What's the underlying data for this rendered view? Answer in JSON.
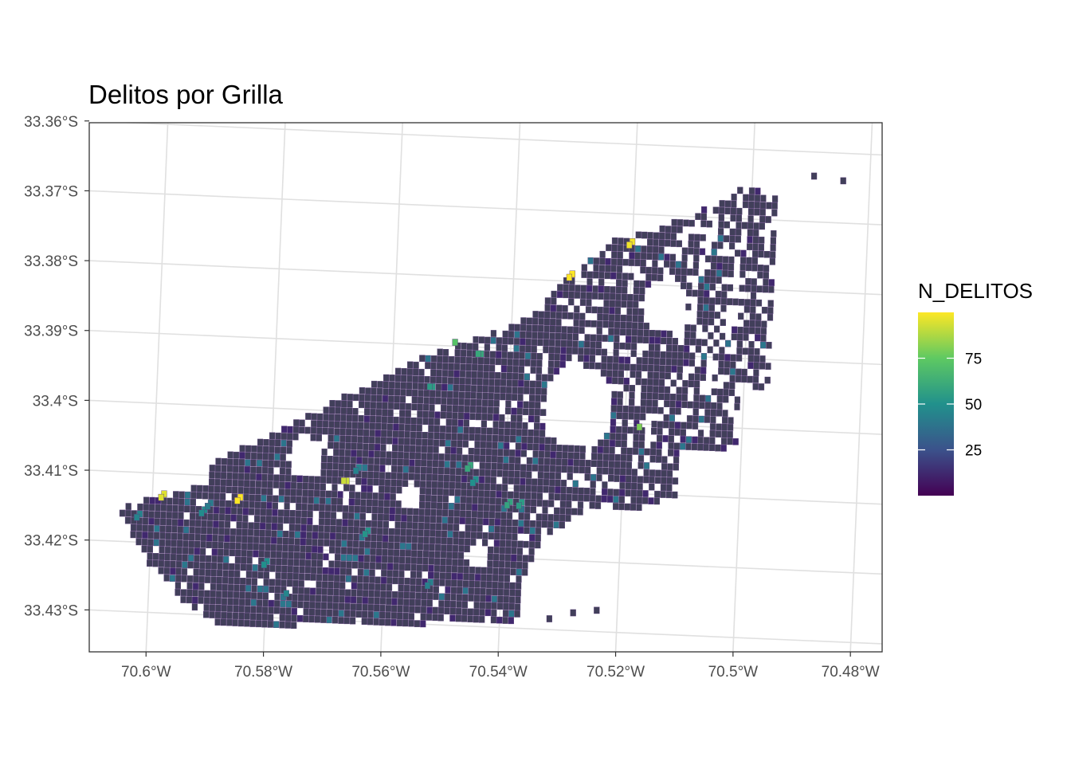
{
  "title": "Delitos por Grilla",
  "x_axis": {
    "ticks": [
      "70.6°W",
      "70.58°W",
      "70.56°W",
      "70.54°W",
      "70.52°W",
      "70.5°W",
      "70.48°W"
    ],
    "values": [
      -70.6,
      -70.58,
      -70.56,
      -70.54,
      -70.52,
      -70.5,
      -70.48
    ]
  },
  "y_axis": {
    "ticks": [
      "33.36°S",
      "33.37°S",
      "33.38°S",
      "33.39°S",
      "33.4°S",
      "33.41°S",
      "33.42°S",
      "33.43°S"
    ],
    "values": [
      -33.36,
      -33.37,
      -33.38,
      -33.39,
      -33.4,
      -33.41,
      -33.42,
      -33.43
    ]
  },
  "legend": {
    "title": "N_DELITOS",
    "labels": [
      "75",
      "50",
      "25"
    ],
    "values": [
      75,
      50,
      25
    ],
    "range": [
      0,
      100
    ],
    "colors": [
      "#440154",
      "#3b528b",
      "#21918c",
      "#5ec962",
      "#fde725"
    ]
  },
  "colors": {
    "base_cell": "#413f5a",
    "cell_border": "#5a3f7a",
    "grid": "#e0e0e0",
    "panel_border": "#333333"
  },
  "chart_data": {
    "type": "heatmap",
    "title": "Delitos por Grilla",
    "xlabel": "",
    "ylabel": "",
    "xlim": [
      -70.614,
      -70.478
    ],
    "ylim": [
      -33.436,
      -33.36
    ],
    "grid": true,
    "legend_position": "right",
    "cell_size_deg": 0.001,
    "region_outline": [
      [
        -70.606,
        -33.4156
      ],
      [
        -70.598,
        -33.4128
      ],
      [
        -70.592,
        -33.4118
      ],
      [
        -70.589,
        -33.4075
      ],
      [
        -70.58,
        -33.404
      ],
      [
        -70.568,
        -33.398
      ],
      [
        -70.555,
        -33.392
      ],
      [
        -70.538,
        -33.386
      ],
      [
        -70.53,
        -33.379
      ],
      [
        -70.523,
        -33.374
      ],
      [
        -70.51,
        -33.37
      ],
      [
        -70.502,
        -33.3655
      ],
      [
        -70.496,
        -33.3665
      ],
      [
        -70.495,
        -33.394
      ],
      [
        -70.5,
        -33.395
      ],
      [
        -70.5,
        -33.404
      ],
      [
        -70.51,
        -33.404
      ],
      [
        -70.51,
        -33.41
      ],
      [
        -70.52,
        -33.413
      ],
      [
        -70.525,
        -33.413
      ],
      [
        -70.533,
        -33.417
      ],
      [
        -70.536,
        -33.423
      ],
      [
        -70.537,
        -33.43
      ],
      [
        -70.552,
        -33.43
      ],
      [
        -70.574,
        -33.431
      ],
      [
        -70.586,
        -33.432
      ],
      [
        -70.594,
        -33.428
      ],
      [
        -70.6,
        -33.423
      ]
    ],
    "gaps": [
      {
        "lon": -70.514,
        "lat": -33.383,
        "r": 0.004
      },
      {
        "lon": -70.528,
        "lat": -33.398,
        "r": 0.006
      },
      {
        "lon": -70.574,
        "lat": -33.407,
        "r": 0.003
      },
      {
        "lon": -70.556,
        "lat": -33.412,
        "r": 0.002
      },
      {
        "lon": -70.544,
        "lat": -33.42,
        "r": 0.002
      }
    ],
    "outlier_cells": [
      {
        "lon": -70.4895,
        "lat": -33.3635,
        "value": 2
      },
      {
        "lon": -70.4845,
        "lat": -33.364,
        "value": 3
      },
      {
        "lon": -70.5275,
        "lat": -33.4275,
        "value": 2
      },
      {
        "lon": -70.5235,
        "lat": -33.427,
        "value": 2
      },
      {
        "lon": -70.5315,
        "lat": -33.4285,
        "value": 1
      }
    ],
    "hotspots": [
      {
        "lon": -70.5985,
        "lat": -33.4135,
        "value": 95
      },
      {
        "lon": -70.5855,
        "lat": -33.4135,
        "value": 100
      },
      {
        "lon": -70.5675,
        "lat": -33.41,
        "value": 92
      },
      {
        "lon": -70.5305,
        "lat": -33.3795,
        "value": 100
      },
      {
        "lon": -70.5205,
        "lat": -33.3745,
        "value": 98
      },
      {
        "lon": -70.5175,
        "lat": -33.4005,
        "value": 80
      },
      {
        "lon": -70.5495,
        "lat": -33.3895,
        "value": 72
      },
      {
        "lon": -70.5465,
        "lat": -33.4075,
        "value": 60
      },
      {
        "lon": -70.5535,
        "lat": -33.396,
        "value": 55
      },
      {
        "lon": -70.5395,
        "lat": -33.4125,
        "value": 58
      },
      {
        "lon": -70.5375,
        "lat": -33.4125,
        "value": 55
      },
      {
        "lon": -70.5635,
        "lat": -33.4175,
        "value": 52
      },
      {
        "lon": -70.5805,
        "lat": -33.4225,
        "value": 50
      },
      {
        "lon": -70.5915,
        "lat": -33.4155,
        "value": 48
      },
      {
        "lon": -70.6025,
        "lat": -33.4165,
        "value": 45
      },
      {
        "lon": -70.5455,
        "lat": -33.4095,
        "value": 50
      },
      {
        "lon": -70.5765,
        "lat": -33.4265,
        "value": 46
      },
      {
        "lon": -70.5655,
        "lat": -33.4085,
        "value": 45
      },
      {
        "lon": -70.5525,
        "lat": -33.4245,
        "value": 44
      },
      {
        "lon": -70.5905,
        "lat": -33.4145,
        "value": 42
      },
      {
        "lon": -70.5455,
        "lat": -33.391,
        "value": 60
      }
    ],
    "base_value": 4
  }
}
